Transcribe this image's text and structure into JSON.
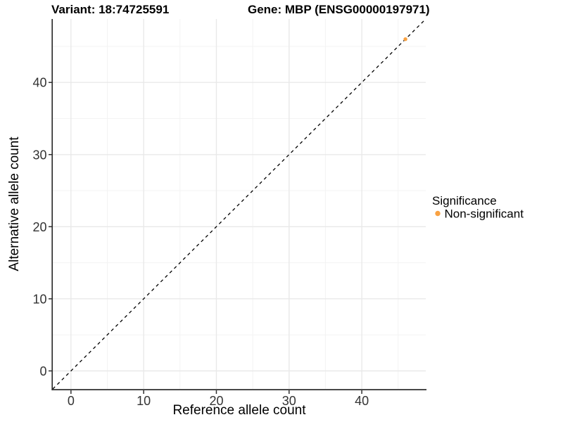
{
  "chart_data": {
    "type": "scatter",
    "titles": [
      "Variant: 18:74725591",
      "Gene: MBP (ENSG00000197971)"
    ],
    "xlabel": "Reference allele count",
    "ylabel": "Alternative allele count",
    "xlim": [
      -2.5,
      48.8
    ],
    "ylim": [
      -2.5,
      48.8
    ],
    "x_ticks": [
      0,
      10,
      20,
      30,
      40
    ],
    "y_ticks": [
      0,
      10,
      20,
      30,
      40
    ],
    "x_minor_ticks": [
      5,
      15,
      25,
      35,
      45
    ],
    "y_minor_ticks": [
      5,
      15,
      25,
      35,
      45
    ],
    "grid": true,
    "reference_line": {
      "type": "identity",
      "style": "dashed",
      "color": "#000000"
    },
    "series": [
      {
        "name": "Non-significant",
        "color": "#F9A242",
        "points": [
          {
            "x": 46,
            "y": 46
          }
        ]
      }
    ],
    "legend": {
      "title": "Significance",
      "position": "right",
      "entries": [
        {
          "label": "Non-significant",
          "color": "#F9A242"
        }
      ]
    }
  },
  "colors": {
    "background": "#FFFFFF",
    "grid_major": "#E9E9E9",
    "grid_minor": "#F3F3F3",
    "axis_line": "#2F2F2F",
    "tick_mark": "#2F2F2F",
    "tick_label": "#333333",
    "title": "#000000",
    "point": "#F9A242"
  }
}
